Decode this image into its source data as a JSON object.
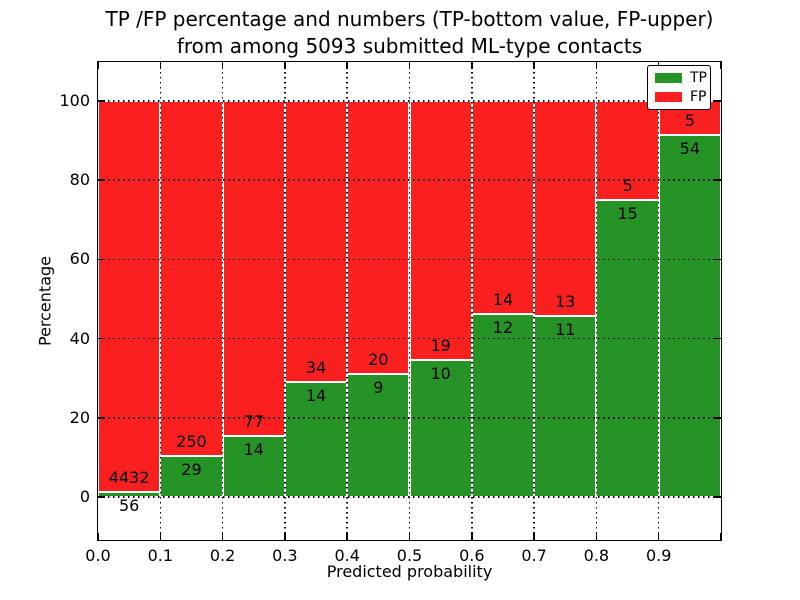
{
  "title": {
    "line1": "TP /FP percentage and numbers (TP-bottom value, FP-upper)",
    "line2": "from among 5093 submitted ML-type contacts"
  },
  "axes": {
    "xlabel": "Predicted probability",
    "ylabel": "Percentage",
    "x_tick_labels": [
      "0.0",
      "0.1",
      "0.2",
      "0.3",
      "0.4",
      "0.5",
      "0.6",
      "0.7",
      "0.8",
      "0.9"
    ],
    "y_tick_labels": [
      "0",
      "20",
      "40",
      "60",
      "80",
      "100"
    ]
  },
  "legend": {
    "entries": [
      {
        "label": "TP",
        "color": "#269326"
      },
      {
        "label": "FP",
        "color": "#fb2020"
      }
    ]
  },
  "chart_data": {
    "type": "bar",
    "variant": "stacked-normalized-percent",
    "title": "TP /FP percentage and numbers (TP-bottom value, FP-upper) from among 5093 submitted ML-type contacts",
    "xlabel": "Predicted probability",
    "ylabel": "Percentage",
    "bin_edges": [
      0.0,
      0.1,
      0.2,
      0.3,
      0.4,
      0.5,
      0.6,
      0.7,
      0.8,
      0.9,
      1.0
    ],
    "categories": [
      "0.0-0.1",
      "0.1-0.2",
      "0.2-0.3",
      "0.3-0.4",
      "0.4-0.5",
      "0.5-0.6",
      "0.6-0.7",
      "0.7-0.8",
      "0.8-0.9",
      "0.9-1.0"
    ],
    "series": [
      {
        "name": "TP",
        "color": "#269326",
        "counts": [
          56,
          29,
          14,
          14,
          9,
          10,
          12,
          11,
          15,
          54
        ],
        "percent_of_bin": [
          1.25,
          10.39,
          15.38,
          29.17,
          31.03,
          34.48,
          46.15,
          45.83,
          75.0,
          91.53
        ]
      },
      {
        "name": "FP",
        "color": "#fb2020",
        "counts": [
          4432,
          250,
          77,
          34,
          20,
          19,
          14,
          13,
          5,
          5
        ],
        "percent_of_bin": [
          98.75,
          89.61,
          84.62,
          70.83,
          68.97,
          65.52,
          53.85,
          54.17,
          25.0,
          8.47
        ]
      }
    ],
    "total_contacts": 5093,
    "x_ticks": [
      0.0,
      0.1,
      0.2,
      0.3,
      0.4,
      0.5,
      0.6,
      0.7,
      0.8,
      0.9
    ],
    "y_ticks": [
      0,
      20,
      40,
      60,
      80,
      100
    ],
    "xlim": [
      0.0,
      1.0
    ],
    "ylim": [
      -11,
      110
    ],
    "grid": "dotted black, both axes, drawn over bars",
    "legend_position": "upper right"
  }
}
